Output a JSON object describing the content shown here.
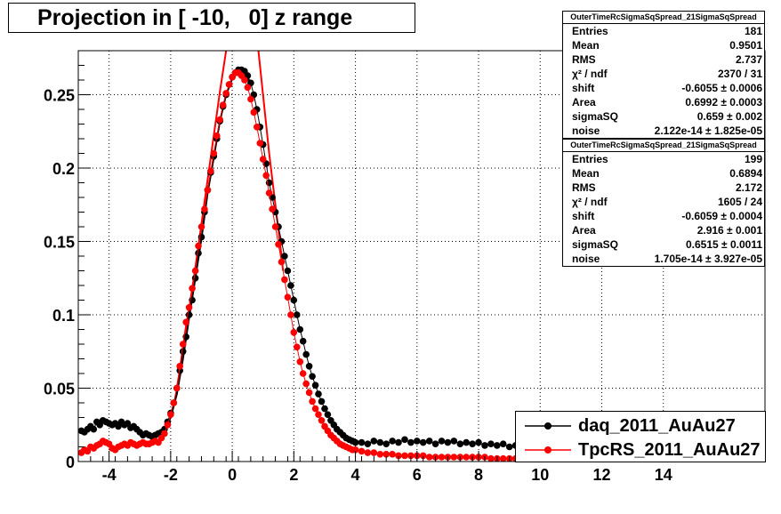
{
  "title": "Projection in [ -10,   0] z range",
  "stats": [
    {
      "header": "OuterTimeRcSigmaSqSpread_21SigmaSqSpread",
      "rows": [
        {
          "label": "Entries",
          "value": "181"
        },
        {
          "label": "Mean",
          "value": "0.9501"
        },
        {
          "label": "RMS",
          "value": "2.737"
        },
        {
          "label": "χ² / ndf",
          "value": "2370 / 31"
        },
        {
          "label": "shift",
          "value": "-0.6055 ± 0.0006"
        },
        {
          "label": "Area",
          "value": "0.6992 ± 0.0003"
        },
        {
          "label": "sigmaSQ",
          "value": "0.659 ± 0.002"
        },
        {
          "label": "noise",
          "value": "2.122e-14 ± 1.825e-05"
        }
      ]
    },
    {
      "header": "OuterTimeRcSigmaSqSpread_21SigmaSqSpread",
      "rows": [
        {
          "label": "Entries",
          "value": "199"
        },
        {
          "label": "Mean",
          "value": "0.6894"
        },
        {
          "label": "RMS",
          "value": "2.172"
        },
        {
          "label": "χ² / ndf",
          "value": "1605 / 24"
        },
        {
          "label": "shift",
          "value": "-0.6059 ± 0.0004"
        },
        {
          "label": "Area",
          "value": "2.916 ± 0.001"
        },
        {
          "label": "sigmaSQ",
          "value": "0.6515 ± 0.0011"
        },
        {
          "label": "noise",
          "value": "1.705e-14 ± 3.927e-05"
        }
      ]
    }
  ],
  "legend": [
    {
      "label": "daq_2011_AuAu27",
      "color": "#000000"
    },
    {
      "label": "TpcRS_2011_AuAu27",
      "color": "#ff0000"
    }
  ],
  "chart_data": {
    "type": "scatter",
    "title": "Projection in [ -10,   0] z range",
    "xlabel": "",
    "ylabel": "",
    "xlim": [
      -5,
      17.3
    ],
    "ylim": [
      0,
      0.28
    ],
    "x_ticks": [
      -4,
      -2,
      0,
      2,
      4,
      6,
      8,
      10,
      12,
      14
    ],
    "y_ticks": [
      0,
      0.05,
      0.1,
      0.15,
      0.2,
      0.25
    ],
    "y_tick_labels": [
      "0",
      "0.05",
      "0.1",
      "0.15",
      "0.2",
      "0.25"
    ],
    "grid": true,
    "legend_position": "bottom-right",
    "series": [
      {
        "name": "daq_2011_AuAu27",
        "color": "#000000",
        "points": [
          [
            -4.9,
            0.021
          ],
          [
            -4.8,
            0.02
          ],
          [
            -4.7,
            0.022
          ],
          [
            -4.6,
            0.024
          ],
          [
            -4.5,
            0.022
          ],
          [
            -4.4,
            0.027
          ],
          [
            -4.3,
            0.025
          ],
          [
            -4.2,
            0.028
          ],
          [
            -4.1,
            0.027
          ],
          [
            -4.0,
            0.026
          ],
          [
            -3.9,
            0.025
          ],
          [
            -3.8,
            0.026
          ],
          [
            -3.7,
            0.024
          ],
          [
            -3.6,
            0.027
          ],
          [
            -3.5,
            0.025
          ],
          [
            -3.4,
            0.026
          ],
          [
            -3.3,
            0.023
          ],
          [
            -3.2,
            0.024
          ],
          [
            -3.1,
            0.022
          ],
          [
            -3.0,
            0.02
          ],
          [
            -2.9,
            0.018
          ],
          [
            -2.8,
            0.019
          ],
          [
            -2.7,
            0.018
          ],
          [
            -2.6,
            0.017
          ],
          [
            -2.5,
            0.018
          ],
          [
            -2.4,
            0.019
          ],
          [
            -2.3,
            0.02
          ],
          [
            -2.2,
            0.022
          ],
          [
            -2.1,
            0.027
          ],
          [
            -2.0,
            0.033
          ],
          [
            -1.9,
            0.04
          ],
          [
            -1.8,
            0.05
          ],
          [
            -1.7,
            0.062
          ],
          [
            -1.6,
            0.075
          ],
          [
            -1.5,
            0.085
          ],
          [
            -1.4,
            0.1
          ],
          [
            -1.3,
            0.11
          ],
          [
            -1.2,
            0.125
          ],
          [
            -1.1,
            0.142
          ],
          [
            -1.0,
            0.153
          ],
          [
            -0.9,
            0.17
          ],
          [
            -0.8,
            0.185
          ],
          [
            -0.7,
            0.197
          ],
          [
            -0.6,
            0.208
          ],
          [
            -0.5,
            0.22
          ],
          [
            -0.4,
            0.232
          ],
          [
            -0.3,
            0.242
          ],
          [
            -0.2,
            0.25
          ],
          [
            -0.1,
            0.257
          ],
          [
            0.0,
            0.262
          ],
          [
            0.1,
            0.265
          ],
          [
            0.2,
            0.267
          ],
          [
            0.3,
            0.267
          ],
          [
            0.4,
            0.266
          ],
          [
            0.5,
            0.263
          ],
          [
            0.6,
            0.258
          ],
          [
            0.7,
            0.25
          ],
          [
            0.8,
            0.24
          ],
          [
            0.9,
            0.228
          ],
          [
            1.0,
            0.216
          ],
          [
            1.1,
            0.203
          ],
          [
            1.2,
            0.19
          ],
          [
            1.3,
            0.18
          ],
          [
            1.4,
            0.17
          ],
          [
            1.5,
            0.16
          ],
          [
            1.6,
            0.15
          ],
          [
            1.7,
            0.14
          ],
          [
            1.8,
            0.13
          ],
          [
            1.9,
            0.12
          ],
          [
            2.0,
            0.11
          ],
          [
            2.1,
            0.1
          ],
          [
            2.2,
            0.09
          ],
          [
            2.3,
            0.082
          ],
          [
            2.4,
            0.073
          ],
          [
            2.5,
            0.065
          ],
          [
            2.6,
            0.058
          ],
          [
            2.7,
            0.052
          ],
          [
            2.8,
            0.046
          ],
          [
            2.9,
            0.041
          ],
          [
            3.0,
            0.036
          ],
          [
            3.1,
            0.032
          ],
          [
            3.2,
            0.028
          ],
          [
            3.3,
            0.025
          ],
          [
            3.4,
            0.022
          ],
          [
            3.5,
            0.02
          ],
          [
            3.6,
            0.018
          ],
          [
            3.7,
            0.016
          ],
          [
            3.8,
            0.015
          ],
          [
            3.9,
            0.014
          ],
          [
            4.0,
            0.013
          ],
          [
            4.2,
            0.013
          ],
          [
            4.4,
            0.012
          ],
          [
            4.6,
            0.014
          ],
          [
            4.8,
            0.013
          ],
          [
            5.0,
            0.012
          ],
          [
            5.2,
            0.014
          ],
          [
            5.4,
            0.013
          ],
          [
            5.6,
            0.015
          ],
          [
            5.8,
            0.013
          ],
          [
            6.0,
            0.014
          ],
          [
            6.2,
            0.013
          ],
          [
            6.4,
            0.014
          ],
          [
            6.6,
            0.012
          ],
          [
            6.8,
            0.014
          ],
          [
            7.0,
            0.013
          ],
          [
            7.2,
            0.014
          ],
          [
            7.4,
            0.012
          ],
          [
            7.6,
            0.013
          ],
          [
            7.8,
            0.012
          ],
          [
            8.0,
            0.013
          ],
          [
            8.2,
            0.011
          ],
          [
            8.4,
            0.012
          ],
          [
            8.6,
            0.011
          ],
          [
            8.8,
            0.012
          ],
          [
            9.0,
            0.01
          ],
          [
            9.2,
            0.011
          ],
          [
            9.4,
            0.01
          ]
        ]
      },
      {
        "name": "TpcRS_2011_AuAu27",
        "color": "#ff0000",
        "points": [
          [
            -4.9,
            0.006
          ],
          [
            -4.8,
            0.008
          ],
          [
            -4.7,
            0.007
          ],
          [
            -4.6,
            0.01
          ],
          [
            -4.5,
            0.009
          ],
          [
            -4.4,
            0.011
          ],
          [
            -4.3,
            0.012
          ],
          [
            -4.2,
            0.014
          ],
          [
            -4.1,
            0.013
          ],
          [
            -4.0,
            0.012
          ],
          [
            -3.9,
            0.009
          ],
          [
            -3.8,
            0.008
          ],
          [
            -3.7,
            0.01
          ],
          [
            -3.6,
            0.011
          ],
          [
            -3.5,
            0.012
          ],
          [
            -3.4,
            0.011
          ],
          [
            -3.3,
            0.013
          ],
          [
            -3.2,
            0.012
          ],
          [
            -3.1,
            0.011
          ],
          [
            -3.0,
            0.012
          ],
          [
            -2.9,
            0.013
          ],
          [
            -2.8,
            0.012
          ],
          [
            -2.7,
            0.012
          ],
          [
            -2.6,
            0.013
          ],
          [
            -2.5,
            0.014
          ],
          [
            -2.4,
            0.013
          ],
          [
            -2.3,
            0.016
          ],
          [
            -2.2,
            0.019
          ],
          [
            -2.1,
            0.025
          ],
          [
            -2.0,
            0.032
          ],
          [
            -1.9,
            0.04
          ],
          [
            -1.8,
            0.05
          ],
          [
            -1.7,
            0.065
          ],
          [
            -1.6,
            0.08
          ],
          [
            -1.5,
            0.095
          ],
          [
            -1.4,
            0.105
          ],
          [
            -1.3,
            0.118
          ],
          [
            -1.2,
            0.13
          ],
          [
            -1.1,
            0.147
          ],
          [
            -1.0,
            0.16
          ],
          [
            -0.9,
            0.172
          ],
          [
            -0.8,
            0.185
          ],
          [
            -0.7,
            0.198
          ],
          [
            -0.6,
            0.21
          ],
          [
            -0.5,
            0.222
          ],
          [
            -0.4,
            0.233
          ],
          [
            -0.3,
            0.243
          ],
          [
            -0.2,
            0.251
          ],
          [
            -0.1,
            0.257
          ],
          [
            0.0,
            0.262
          ],
          [
            0.1,
            0.265
          ],
          [
            0.2,
            0.265
          ],
          [
            0.3,
            0.263
          ],
          [
            0.4,
            0.26
          ],
          [
            0.5,
            0.255
          ],
          [
            0.6,
            0.247
          ],
          [
            0.7,
            0.238
          ],
          [
            0.8,
            0.228
          ],
          [
            0.9,
            0.217
          ],
          [
            1.0,
            0.206
          ],
          [
            1.1,
            0.195
          ],
          [
            1.2,
            0.183
          ],
          [
            1.3,
            0.172
          ],
          [
            1.4,
            0.16
          ],
          [
            1.5,
            0.148
          ],
          [
            1.6,
            0.136
          ],
          [
            1.7,
            0.124
          ],
          [
            1.8,
            0.112
          ],
          [
            1.9,
            0.1
          ],
          [
            2.0,
            0.088
          ],
          [
            2.1,
            0.078
          ],
          [
            2.2,
            0.068
          ],
          [
            2.3,
            0.06
          ],
          [
            2.4,
            0.053
          ],
          [
            2.5,
            0.047
          ],
          [
            2.6,
            0.041
          ],
          [
            2.7,
            0.036
          ],
          [
            2.8,
            0.032
          ],
          [
            2.9,
            0.028
          ],
          [
            3.0,
            0.024
          ],
          [
            3.1,
            0.021
          ],
          [
            3.2,
            0.018
          ],
          [
            3.3,
            0.016
          ],
          [
            3.4,
            0.014
          ],
          [
            3.5,
            0.012
          ],
          [
            3.6,
            0.011
          ],
          [
            3.7,
            0.01
          ],
          [
            3.8,
            0.009
          ],
          [
            3.9,
            0.008
          ],
          [
            4.0,
            0.008
          ],
          [
            4.2,
            0.007
          ],
          [
            4.4,
            0.006
          ],
          [
            4.6,
            0.006
          ],
          [
            4.8,
            0.005
          ],
          [
            5.0,
            0.005
          ],
          [
            5.2,
            0.005
          ],
          [
            5.4,
            0.004
          ],
          [
            5.6,
            0.004
          ],
          [
            5.8,
            0.004
          ],
          [
            6.0,
            0.004
          ],
          [
            6.2,
            0.004
          ],
          [
            6.4,
            0.003
          ],
          [
            6.6,
            0.003
          ],
          [
            6.8,
            0.003
          ],
          [
            7.0,
            0.003
          ],
          [
            7.2,
            0.003
          ],
          [
            7.4,
            0.003
          ],
          [
            7.6,
            0.003
          ],
          [
            7.8,
            0.003
          ],
          [
            8.0,
            0.003
          ],
          [
            8.2,
            0.003
          ],
          [
            8.4,
            0.002
          ],
          [
            8.6,
            0.002
          ],
          [
            8.8,
            0.002
          ],
          [
            9.0,
            0.002
          ],
          [
            9.2,
            0.002
          ],
          [
            9.4,
            0.002
          ]
        ]
      }
    ],
    "fit_curves": [
      {
        "color": "#000000",
        "points": [
          [
            -2.4,
            0.019
          ],
          [
            -2.2,
            0.022
          ],
          [
            -2.0,
            0.03
          ],
          [
            -1.8,
            0.046
          ],
          [
            -1.6,
            0.07
          ],
          [
            -1.4,
            0.098
          ],
          [
            -1.2,
            0.125
          ],
          [
            -1.0,
            0.152
          ],
          [
            -0.8,
            0.183
          ],
          [
            -0.6,
            0.207
          ],
          [
            -0.4,
            0.232
          ],
          [
            -0.2,
            0.25
          ],
          [
            0.0,
            0.261
          ],
          [
            0.2,
            0.266
          ],
          [
            0.4,
            0.265
          ],
          [
            0.6,
            0.257
          ]
        ]
      },
      {
        "color": "#ff0000",
        "points": [
          [
            -1.8,
            0.05
          ],
          [
            -1.6,
            0.075
          ],
          [
            -1.4,
            0.104
          ],
          [
            -1.2,
            0.132
          ],
          [
            -1.0,
            0.162
          ],
          [
            -0.8,
            0.192
          ],
          [
            -0.6,
            0.222
          ],
          [
            -0.4,
            0.252
          ],
          [
            -0.2,
            0.28
          ]
        ]
      },
      {
        "color": "#ff0000",
        "points": [
          [
            0.85,
            0.28
          ],
          [
            1.0,
            0.25
          ],
          [
            1.2,
            0.21
          ],
          [
            1.4,
            0.175
          ],
          [
            1.6,
            0.14
          ],
          [
            1.65,
            0.13
          ]
        ]
      }
    ]
  }
}
